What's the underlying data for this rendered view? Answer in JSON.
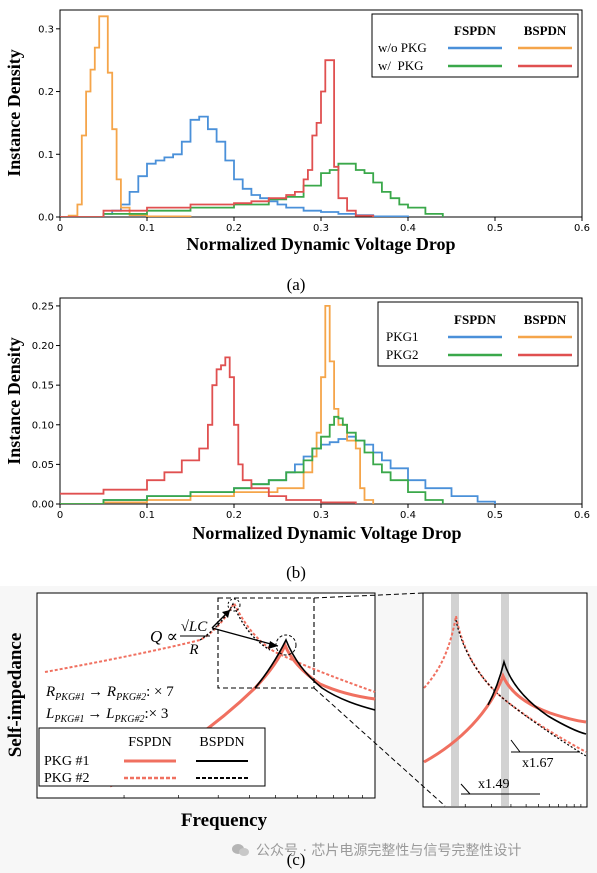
{
  "chart_data": [
    {
      "type": "line",
      "panel_label": "(a)",
      "xlabel": "Normalized Dynamic Voltage Drop",
      "ylabel": "Instance Density",
      "xlim": [
        0,
        0.6
      ],
      "ylim": [
        0,
        0.33
      ],
      "xticks": [
        "0",
        "0.1",
        "0.2",
        "0.3",
        "0.4",
        "0.5",
        "0.6"
      ],
      "yticks": [
        "0.0",
        "0.1",
        "0.2",
        "0.3"
      ],
      "legend": {
        "placement": "top-right",
        "columns": [
          "FSPDN",
          "BSPDN"
        ],
        "rows": [
          {
            "label": "w/o PKG",
            "colors": [
              "#4a90d9",
              "#f5a54a"
            ]
          },
          {
            "label": "w/  PKG",
            "colors": [
              "#3aa84a",
              "#e05050"
            ]
          }
        ]
      },
      "series": [
        {
          "color": "#4a90d9",
          "x": [
            0,
            0.05,
            0.06,
            0.07,
            0.08,
            0.09,
            0.1,
            0.11,
            0.12,
            0.13,
            0.14,
            0.15,
            0.16,
            0.17,
            0.18,
            0.19,
            0.2,
            0.21,
            0.22,
            0.23,
            0.24,
            0.25,
            0.26,
            0.28,
            0.3,
            0.32,
            0.34,
            0.36,
            0.4
          ],
          "y": [
            0,
            0.005,
            0.01,
            0.02,
            0.04,
            0.065,
            0.085,
            0.09,
            0.095,
            0.1,
            0.12,
            0.155,
            0.16,
            0.14,
            0.12,
            0.09,
            0.06,
            0.045,
            0.035,
            0.03,
            0.025,
            0.02,
            0.015,
            0.01,
            0.008,
            0.005,
            0.003,
            0.001,
            0
          ]
        },
        {
          "color": "#f5a54a",
          "x": [
            0,
            0.01,
            0.02,
            0.025,
            0.03,
            0.035,
            0.04,
            0.045,
            0.05,
            0.055,
            0.06,
            0.065,
            0.07,
            0.08,
            0.1,
            0.15
          ],
          "y": [
            0,
            0.002,
            0.02,
            0.13,
            0.2,
            0.235,
            0.27,
            0.32,
            0.32,
            0.23,
            0.14,
            0.06,
            0.015,
            0.003,
            0.001,
            0
          ]
        },
        {
          "color": "#3aa84a",
          "x": [
            0,
            0.05,
            0.1,
            0.15,
            0.2,
            0.24,
            0.26,
            0.28,
            0.3,
            0.31,
            0.32,
            0.33,
            0.34,
            0.35,
            0.36,
            0.37,
            0.38,
            0.39,
            0.4,
            0.42,
            0.44
          ],
          "y": [
            0,
            0.005,
            0.01,
            0.015,
            0.02,
            0.028,
            0.032,
            0.05,
            0.07,
            0.075,
            0.085,
            0.085,
            0.075,
            0.07,
            0.055,
            0.04,
            0.03,
            0.02,
            0.015,
            0.005,
            0
          ]
        },
        {
          "color": "#e05050",
          "x": [
            0,
            0.05,
            0.1,
            0.15,
            0.2,
            0.22,
            0.24,
            0.26,
            0.27,
            0.28,
            0.285,
            0.29,
            0.295,
            0.3,
            0.305,
            0.31,
            0.315,
            0.32,
            0.33,
            0.34,
            0.36
          ],
          "y": [
            0,
            0.01,
            0.015,
            0.02,
            0.022,
            0.025,
            0.03,
            0.035,
            0.04,
            0.06,
            0.075,
            0.13,
            0.15,
            0.2,
            0.25,
            0.25,
            0.08,
            0.03,
            0.01,
            0.002,
            0
          ]
        }
      ]
    },
    {
      "type": "line",
      "panel_label": "(b)",
      "xlabel": "Normalized Dynamic Voltage Drop",
      "ylabel": "Instance Density",
      "xlim": [
        0,
        0.6
      ],
      "ylim": [
        0,
        0.26
      ],
      "xticks": [
        "0",
        "0.1",
        "0.2",
        "0.3",
        "0.4",
        "0.5",
        "0.6"
      ],
      "yticks": [
        "0.00",
        "0.05",
        "0.10",
        "0.15",
        "0.20",
        "0.25"
      ],
      "legend": {
        "placement": "top-right",
        "columns": [
          "FSPDN",
          "BSPDN"
        ],
        "rows": [
          {
            "label": "PKG1",
            "colors": [
              "#4a90d9",
              "#f5a54a"
            ]
          },
          {
            "label": "PKG2",
            "colors": [
              "#3aa84a",
              "#e05050"
            ]
          }
        ]
      },
      "series": [
        {
          "color": "#4a90d9",
          "x": [
            0,
            0.05,
            0.1,
            0.15,
            0.2,
            0.22,
            0.24,
            0.26,
            0.27,
            0.28,
            0.29,
            0.3,
            0.31,
            0.32,
            0.33,
            0.34,
            0.35,
            0.36,
            0.37,
            0.38,
            0.4,
            0.42,
            0.45,
            0.48,
            0.5
          ],
          "y": [
            0,
            0.005,
            0.01,
            0.015,
            0.02,
            0.025,
            0.03,
            0.04,
            0.05,
            0.06,
            0.07,
            0.075,
            0.078,
            0.082,
            0.085,
            0.08,
            0.075,
            0.065,
            0.055,
            0.045,
            0.03,
            0.02,
            0.01,
            0.003,
            0
          ]
        },
        {
          "color": "#f5a54a",
          "x": [
            0,
            0.05,
            0.1,
            0.15,
            0.2,
            0.25,
            0.28,
            0.29,
            0.295,
            0.3,
            0.305,
            0.31,
            0.315,
            0.32,
            0.33,
            0.34,
            0.345,
            0.35,
            0.36
          ],
          "y": [
            0,
            0.002,
            0.005,
            0.01,
            0.015,
            0.02,
            0.04,
            0.06,
            0.09,
            0.16,
            0.25,
            0.18,
            0.12,
            0.1,
            0.08,
            0.07,
            0.02,
            0.005,
            0
          ]
        },
        {
          "color": "#3aa84a",
          "x": [
            0,
            0.05,
            0.1,
            0.15,
            0.2,
            0.22,
            0.24,
            0.26,
            0.28,
            0.29,
            0.3,
            0.31,
            0.315,
            0.32,
            0.325,
            0.33,
            0.34,
            0.35,
            0.36,
            0.37,
            0.38,
            0.4,
            0.42,
            0.44
          ],
          "y": [
            0,
            0.005,
            0.01,
            0.015,
            0.02,
            0.025,
            0.03,
            0.04,
            0.055,
            0.07,
            0.085,
            0.1,
            0.11,
            0.108,
            0.1,
            0.09,
            0.08,
            0.065,
            0.05,
            0.04,
            0.03,
            0.015,
            0.005,
            0
          ]
        },
        {
          "color": "#e05050",
          "x": [
            0,
            0.05,
            0.1,
            0.12,
            0.14,
            0.16,
            0.17,
            0.175,
            0.18,
            0.185,
            0.19,
            0.195,
            0.2,
            0.205,
            0.21,
            0.22,
            0.24,
            0.26,
            0.3,
            0.34
          ],
          "y": [
            0.013,
            0.018,
            0.03,
            0.04,
            0.055,
            0.07,
            0.1,
            0.15,
            0.17,
            0.175,
            0.185,
            0.16,
            0.1,
            0.05,
            0.03,
            0.02,
            0.01,
            0.005,
            0.002,
            0
          ]
        }
      ]
    },
    {
      "type": "line",
      "panel_label": "(c)",
      "xlabel": "Frequency",
      "ylabel": "Self-impedance",
      "legend": {
        "placement": "bottom-left",
        "columns": [
          "FSPDN",
          "BSPDN"
        ],
        "rows": [
          {
            "label": "PKG #1",
            "colors": [
              "#f07060",
              "#000000"
            ],
            "style": "solid"
          },
          {
            "label": "PKG #2",
            "colors": [
              "#f07060",
              "#000000"
            ],
            "style": "dashed"
          }
        ]
      },
      "annotations": {
        "q_formula_lhs": "Q ∝",
        "q_formula_num": "√LC",
        "q_formula_den": "R",
        "r_ratio": "R",
        "r_ratio_sub1": "PKG#1",
        "r_ratio_arrow": "→ R",
        "r_ratio_sub2": "PKG#2",
        "r_ratio_factor": ": × 7",
        "l_ratio": "L",
        "l_ratio_sub1": "PKG#1",
        "l_ratio_arrow": "→ L",
        "l_ratio_sub2": "PKG#2",
        "l_ratio_factor": ":× 3",
        "zoom_label_1": "x1.67",
        "zoom_label_2": "x1.49"
      }
    }
  ],
  "watermark": {
    "icon": "wechat-icon",
    "text": "公众号 · 芯片电源完整性与信号完整性设计"
  }
}
